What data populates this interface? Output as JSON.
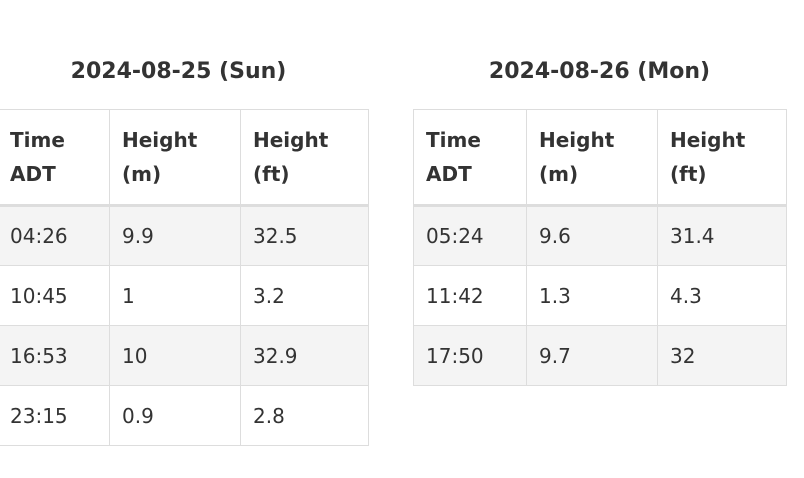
{
  "days": [
    {
      "title": "2024-08-25 (Sun)",
      "headers": {
        "time_line1": "Time",
        "time_line2": "ADT",
        "m_line1": "Height",
        "m_line2": "(m)",
        "ft_line1": "Height",
        "ft_line2": "(ft)"
      },
      "rows": [
        {
          "time": "04:26",
          "m": "9.9",
          "ft": "32.5"
        },
        {
          "time": "10:45",
          "m": "1",
          "ft": "3.2"
        },
        {
          "time": "16:53",
          "m": "10",
          "ft": "32.9"
        },
        {
          "time": "23:15",
          "m": "0.9",
          "ft": "2.8"
        }
      ]
    },
    {
      "title": "2024-08-26 (Mon)",
      "headers": {
        "time_line1": "Time",
        "time_line2": "ADT",
        "m_line1": "Height",
        "m_line2": "(m)",
        "ft_line1": "Height",
        "ft_line2": "(ft)"
      },
      "rows": [
        {
          "time": "05:24",
          "m": "9.6",
          "ft": "31.4"
        },
        {
          "time": "11:42",
          "m": "1.3",
          "ft": "4.3"
        },
        {
          "time": "17:50",
          "m": "9.7",
          "ft": "32"
        }
      ]
    }
  ]
}
